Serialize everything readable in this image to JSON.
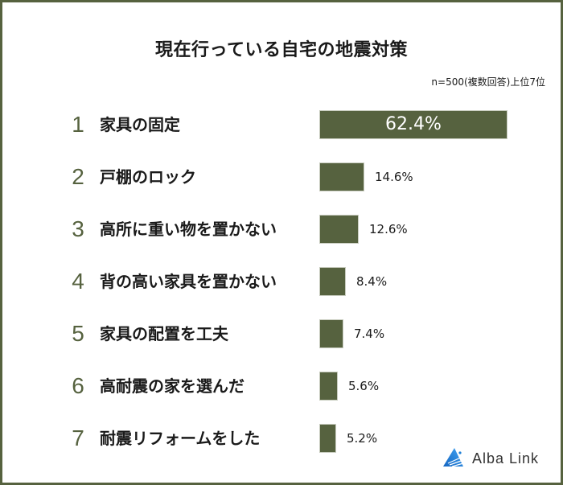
{
  "title": "現在行っている自宅の地震対策",
  "note": "n=500(複数回答)上位7位",
  "brand": {
    "name": "Alba Link",
    "color": "#1e7fd6"
  },
  "colors": {
    "bar": "#56623f",
    "frame": "#56623f",
    "rank": "#56623f"
  },
  "chart_data": {
    "type": "bar",
    "orientation": "horizontal",
    "title": "現在行っている自宅の地震対策",
    "subtitle": "n=500(複数回答)上位7位",
    "categories": [
      "家具の固定",
      "戸棚のロック",
      "高所に重い物を置かない",
      "背の高い家具を置かない",
      "家具の配置を工夫",
      "高耐震の家を選んだ",
      "耐震リフォームをした"
    ],
    "ranks": [
      1,
      2,
      3,
      4,
      5,
      6,
      7
    ],
    "values": [
      62.4,
      14.6,
      12.6,
      8.4,
      7.4,
      5.6,
      5.2
    ],
    "value_labels": [
      "62.4%",
      "14.6%",
      "12.6%",
      "8.4%",
      "7.4%",
      "5.6%",
      "5.2%"
    ],
    "unit": "%",
    "xlabel": "",
    "ylabel": "",
    "grid": false,
    "legend": false
  },
  "rows": [
    {
      "rank": "1",
      "label": "家具の固定",
      "value": 62.4,
      "value_label": "62.4%"
    },
    {
      "rank": "2",
      "label": "戸棚のロック",
      "value": 14.6,
      "value_label": "14.6%"
    },
    {
      "rank": "3",
      "label": "高所に重い物を置かない",
      "value": 12.6,
      "value_label": "12.6%"
    },
    {
      "rank": "4",
      "label": "背の高い家具を置かない",
      "value": 8.4,
      "value_label": "8.4%"
    },
    {
      "rank": "5",
      "label": "家具の配置を工夫",
      "value": 7.4,
      "value_label": "7.4%"
    },
    {
      "rank": "6",
      "label": "高耐震の家を選んだ",
      "value": 5.6,
      "value_label": "5.6%"
    },
    {
      "rank": "7",
      "label": "耐震リフォームをした",
      "value": 5.2,
      "value_label": "5.2%"
    }
  ]
}
